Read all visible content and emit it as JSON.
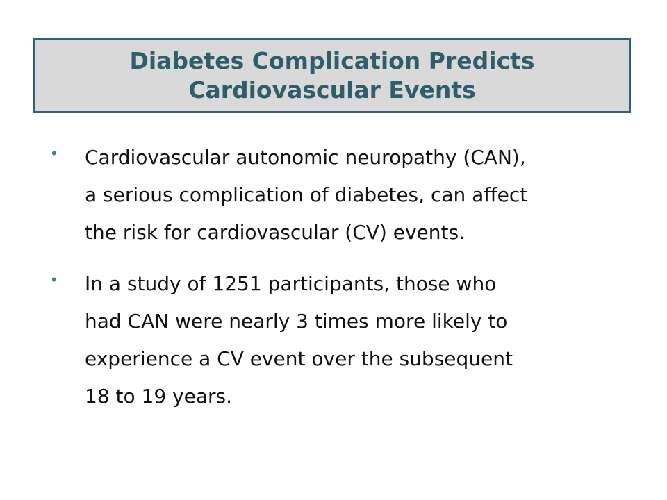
{
  "slide": {
    "title_lines": [
      "Diabetes Complication Predicts",
      "Cardiovascular Events"
    ],
    "bullets": [
      {
        "marker": "•",
        "lines": [
          "Cardiovascular autonomic neuropathy (CAN),",
          "a serious complication of diabetes, can affect",
          "the risk for cardiovascular (CV) events."
        ]
      },
      {
        "marker": "•",
        "lines": [
          "In a study of 1251 participants, those who",
          "had CAN were nearly 3 times more likely to",
          "experience a CV event over the subsequent",
          "18 to 19 years."
        ]
      }
    ],
    "colors": {
      "title_text": "#2f5d6b",
      "title_border": "#31607a",
      "title_background": "#d9d9d9",
      "bullet_marker": "#3f7f8e",
      "body_text": "#111111"
    }
  }
}
